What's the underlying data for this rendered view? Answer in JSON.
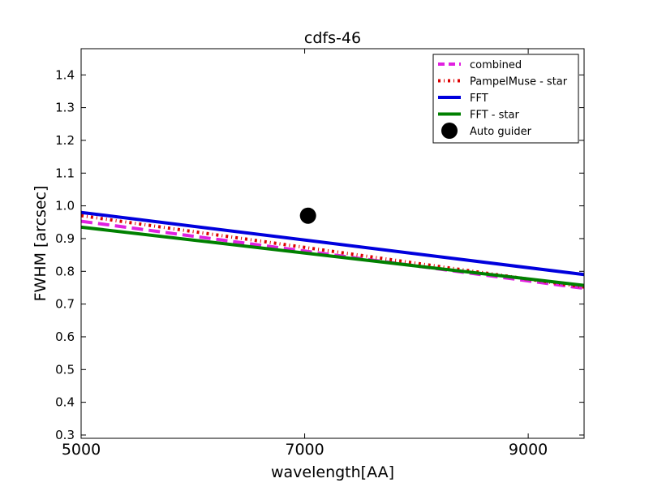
{
  "chart_data": {
    "type": "line",
    "title": "cdfs-46",
    "xlabel": "wavelength[AA]",
    "ylabel": "FWHM [arcsec]",
    "xlim": [
      5000,
      9500
    ],
    "ylim": [
      0.29,
      1.48
    ],
    "x_ticks": [
      5000,
      7000,
      9000
    ],
    "x_tick_labels": [
      "5000",
      "7000",
      "9000"
    ],
    "y_ticks": [
      0.3,
      0.4,
      0.5,
      0.6,
      0.7,
      0.8,
      0.9,
      1.0,
      1.1,
      1.2,
      1.3,
      1.4
    ],
    "y_tick_labels": [
      "0.3",
      "0.4",
      "0.5",
      "0.6",
      "0.7",
      "0.8",
      "0.9",
      "1.0",
      "1.1",
      "1.2",
      "1.3",
      "1.4"
    ],
    "grid": false,
    "legend_position": "top-right",
    "series": [
      {
        "name": "combined",
        "style": "dashed",
        "color": "#e020e0",
        "x": [
          5000,
          9500
        ],
        "y": [
          0.953,
          0.748
        ]
      },
      {
        "name": "PampelMuse - star",
        "style": "dashdot",
        "color": "#dd0000",
        "x": [
          5000,
          9500
        ],
        "y": [
          0.97,
          0.752
        ]
      },
      {
        "name": "FFT",
        "style": "solid",
        "color": "#0000dd",
        "x": [
          5000,
          9500
        ],
        "y": [
          0.98,
          0.79
        ]
      },
      {
        "name": "FFT - star",
        "style": "solid",
        "color": "#008000",
        "x": [
          5000,
          9500
        ],
        "y": [
          0.935,
          0.757
        ]
      },
      {
        "name": "Auto guider",
        "style": "marker",
        "color": "#000000",
        "x": [
          7030
        ],
        "y": [
          0.97
        ]
      }
    ]
  }
}
